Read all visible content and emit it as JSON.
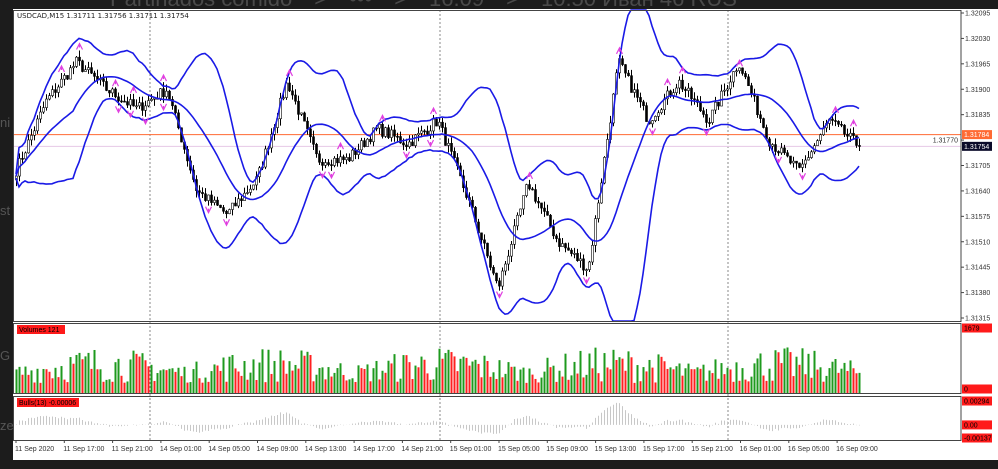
{
  "background": {
    "breadcrumb": [
      "Partinados comido",
      ">",
      "•••",
      ">",
      "16.09",
      ">",
      "10:50 Иван 46 RUS"
    ],
    "side_fragments": [
      "ni",
      "st",
      "G",
      "ze"
    ]
  },
  "chart": {
    "header": "USDCAD,M15  1.31711 1.31756 1.31711 1.31754",
    "symbol": "USDCAD",
    "timeframe": "M15",
    "ohlc": {
      "open": "1.31711",
      "high": "1.31756",
      "low": "1.31711",
      "close": "1.31754"
    },
    "price_axis": [
      "1.32095",
      "1.32030",
      "1.31965",
      "1.31900",
      "1.31835",
      "1.31770",
      "1.31705",
      "1.31640",
      "1.31575",
      "1.31510",
      "1.31445",
      "1.31380",
      "1.31315"
    ],
    "price_range": [
      1.31315,
      1.32095
    ],
    "hline_price": "1.31784",
    "bid_price": "1.31754",
    "time_axis": [
      "11 Sep 2020",
      "11 Sep 17:00",
      "11 Sep 21:00",
      "14 Sep 01:00",
      "14 Sep 05:00",
      "14 Sep 09:00",
      "14 Sep 13:00",
      "14 Sep 17:00",
      "14 Sep 21:00",
      "15 Sep 01:00",
      "15 Sep 05:00",
      "15 Sep 09:00",
      "15 Sep 13:00",
      "15 Sep 17:00",
      "15 Sep 21:00",
      "16 Sep 01:00",
      "16 Sep 05:00",
      "16 Sep 09:00"
    ],
    "price_path": [
      1.31693,
      1.3187,
      1.3197,
      1.319,
      1.3185,
      1.319,
      1.3164,
      1.3158,
      1.3167,
      1.3192,
      1.3172,
      1.3172,
      1.318,
      1.3176,
      1.3182,
      1.3162,
      1.3139,
      1.3166,
      1.3151,
      1.3144,
      1.3197,
      1.3182,
      1.3192,
      1.3182,
      1.3197,
      1.3177,
      1.3169,
      1.3182,
      1.31754
    ],
    "indicators": {
      "bollinger_bands": {
        "color": "#1a1ae6"
      },
      "fractals": {
        "color": "#e040e0"
      }
    },
    "colors": {
      "candle": "#000000",
      "hline": "#ff6a33",
      "bid_tag": "#0b0b2a",
      "up_volume": "#1e9a1e",
      "down_volume": "#ff2020",
      "bulls": "#c8c8c8"
    }
  },
  "volumes_panel": {
    "label": "Volumes 121",
    "max_label": "1679",
    "min_label": "0",
    "max": 1679
  },
  "bulls_panel": {
    "label": "Bulls(13) -0.00006",
    "max_label": "0.00294",
    "zero_label": "0.00",
    "min_label": "-0.00137"
  }
}
